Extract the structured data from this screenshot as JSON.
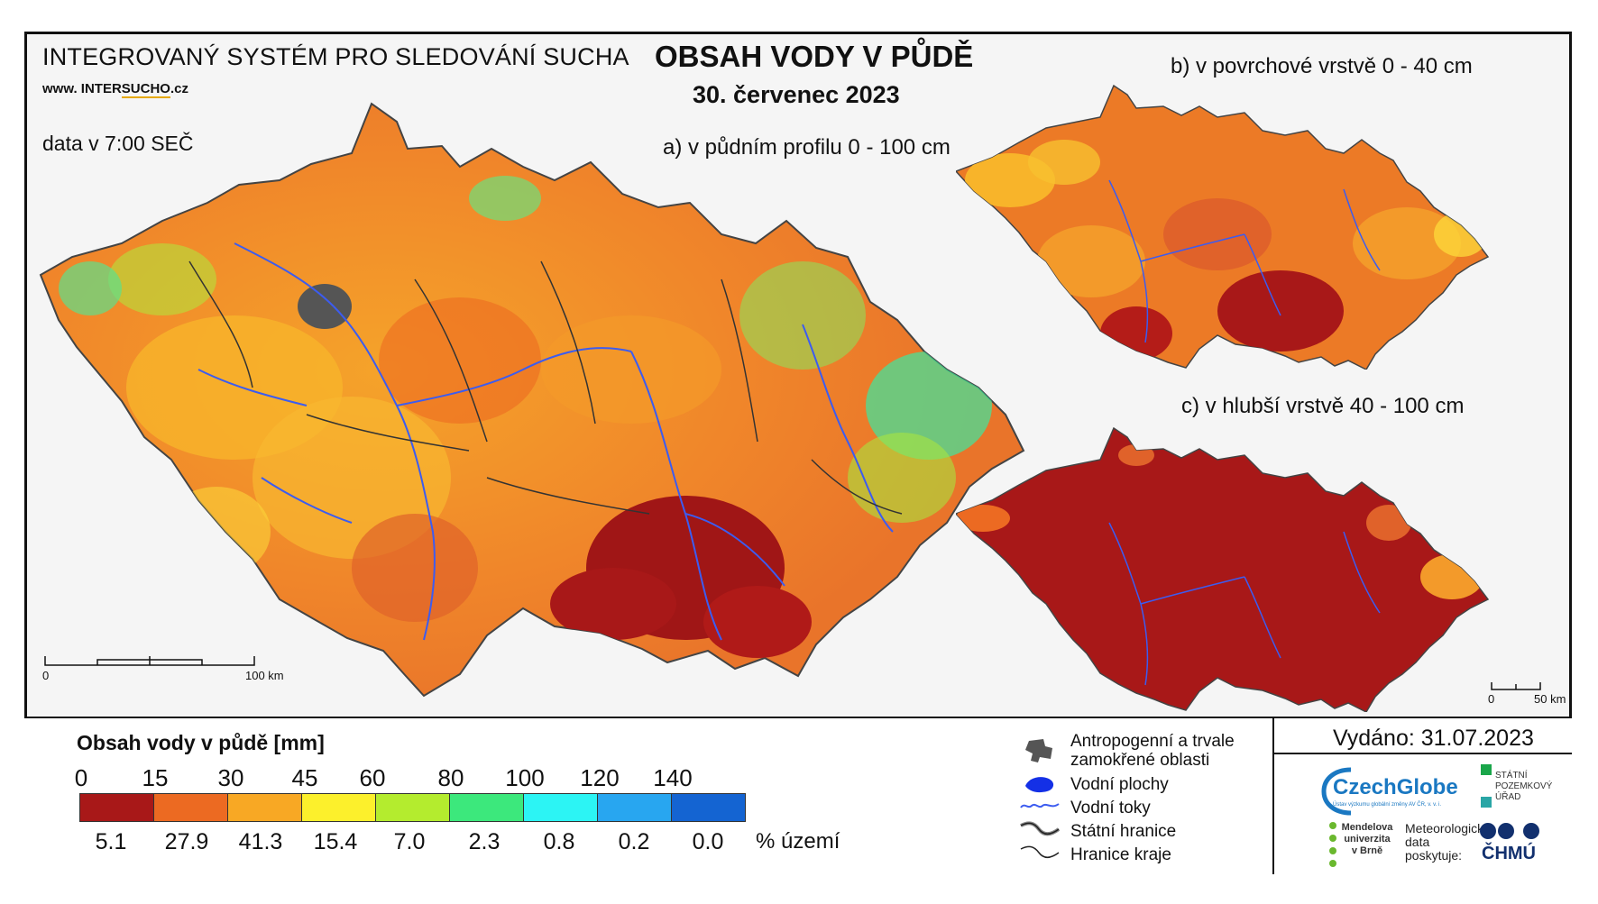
{
  "header": {
    "system_title": "INTEGROVANÝ SYSTÉM PRO SLEDOVÁNÍ SUCHA",
    "website_prefix": "www.",
    "website_mid": "INTER",
    "website_hl": "SUCHO",
    "website_suffix": ".cz",
    "data_time": "data v 7:00 SEČ",
    "main_title": "OBSAH VODY V PŮDĚ",
    "date": "30. červenec 2023"
  },
  "maps": {
    "a_label": "a) v půdním profilu 0 - 100 cm",
    "b_label": "b) v povrchové vrstvě 0 - 40 cm",
    "c_label": "c) v hlubší vrstvě 40 - 100 cm",
    "scale_main": {
      "start": "0",
      "end": "100 km"
    },
    "scale_small": {
      "start": "0",
      "end": "50 km"
    }
  },
  "legend": {
    "title": "Obsah vody v půdě  [mm]",
    "ticks": [
      "0",
      "15",
      "30",
      "45",
      "60",
      "80",
      "100",
      "120",
      "140"
    ],
    "colors": [
      "#a81818",
      "#ec6a22",
      "#f8a824",
      "#fcf02c",
      "#b4ec2e",
      "#3ce87c",
      "#2cf4f4",
      "#28a6f0",
      "#1464d2"
    ],
    "percentages": [
      "5.1",
      "27.9",
      "41.3",
      "15.4",
      "7.0",
      "2.3",
      "0.8",
      "0.2",
      "0.0"
    ],
    "percent_unit": "% území"
  },
  "key": {
    "anthropogenic": "Antropogenní a trvale",
    "anthropogenic_2": "zamokřené oblasti",
    "water_bodies": "Vodní plochy",
    "rivers": "Vodní toky",
    "state_border": "Státní hranice",
    "region_border": "Hranice kraje"
  },
  "issued": "Vydáno: 31.07.2023",
  "logos": {
    "czechglobe": "CzechGlobe",
    "czechglobe_sub": "Ústav výzkumu globální změny AV ČR, v. v. i.",
    "spu": "STÁTNÍ POZEMKOVÝ ÚŘAD",
    "mendelu": "Mendelova univerzita v Brně",
    "meteo": "Meteorologická data poskytuje:",
    "chmu": "ČHMÚ"
  }
}
